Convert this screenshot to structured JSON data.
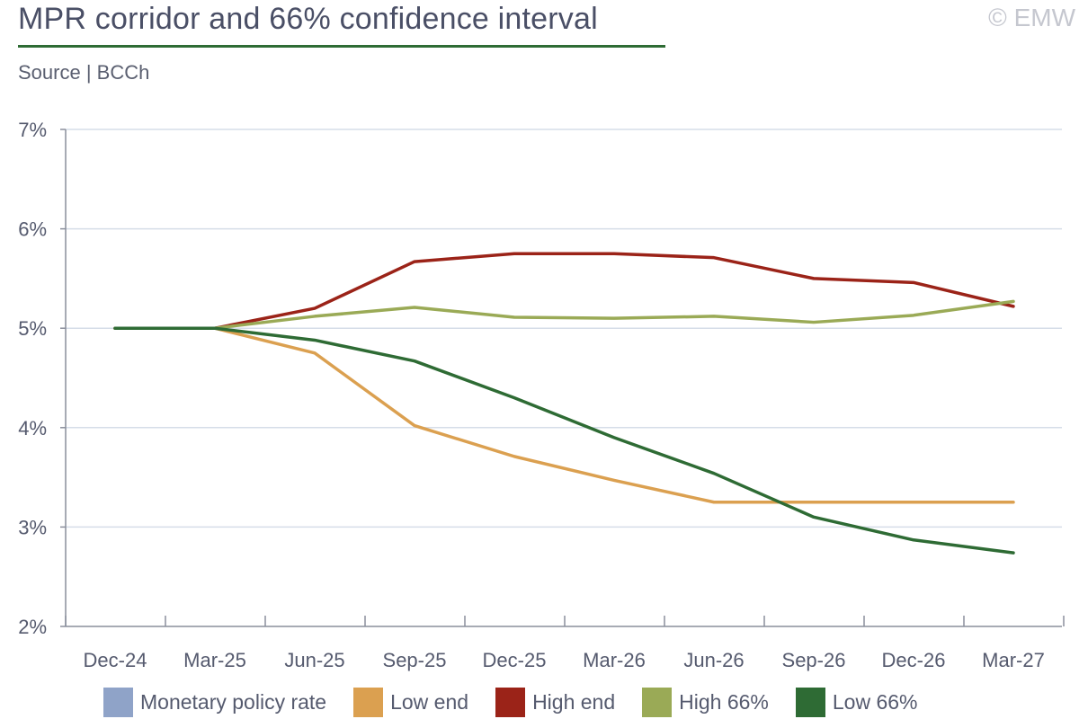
{
  "header": {
    "title": "MPR corridor and 66% confidence interval",
    "source": "Source | BCCh",
    "copyright": "© EMW"
  },
  "chart_data": {
    "type": "line",
    "title": "MPR corridor and 66% confidence interval",
    "xlabel": "",
    "ylabel": "",
    "categories": [
      "Dec-24",
      "Mar-25",
      "Jun-25",
      "Sep-25",
      "Dec-25",
      "Mar-26",
      "Jun-26",
      "Sep-26",
      "Dec-26",
      "Mar-27"
    ],
    "ylim": [
      2,
      7
    ],
    "y_ticks": [
      2,
      3,
      4,
      5,
      6,
      7
    ],
    "y_tick_labels": [
      "2%",
      "3%",
      "4%",
      "5%",
      "6%",
      "7%"
    ],
    "grid": "horizontal",
    "legend_position": "bottom",
    "series": [
      {
        "name": "Monetary policy rate",
        "color": "#8fa3c8",
        "values": [
          5.0,
          null,
          null,
          null,
          null,
          null,
          null,
          null,
          null,
          null
        ]
      },
      {
        "name": "Low end",
        "color": "#dba050",
        "values": [
          5.0,
          5.0,
          4.75,
          4.02,
          3.71,
          3.47,
          3.25,
          3.25,
          3.25,
          3.25
        ]
      },
      {
        "name": "High end",
        "color": "#9b2318",
        "values": [
          5.0,
          5.0,
          5.2,
          5.67,
          5.75,
          5.75,
          5.71,
          5.5,
          5.46,
          5.22
        ]
      },
      {
        "name": "High 66%",
        "color": "#9aaa56",
        "values": [
          5.0,
          5.0,
          5.12,
          5.21,
          5.11,
          5.1,
          5.12,
          5.06,
          5.13,
          5.27
        ]
      },
      {
        "name": "Low 66%",
        "color": "#2e6b34",
        "values": [
          5.0,
          5.0,
          4.88,
          4.67,
          4.3,
          3.9,
          3.54,
          3.1,
          2.87,
          2.74
        ]
      }
    ]
  }
}
